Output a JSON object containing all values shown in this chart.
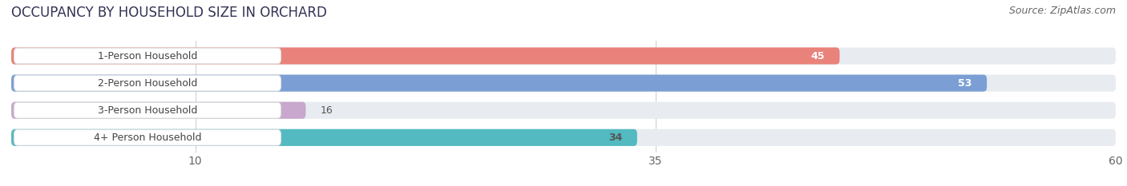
{
  "title": "OCCUPANCY BY HOUSEHOLD SIZE IN ORCHARD",
  "source": "Source: ZipAtlas.com",
  "categories": [
    "1-Person Household",
    "2-Person Household",
    "3-Person Household",
    "4+ Person Household"
  ],
  "values": [
    45,
    53,
    16,
    34
  ],
  "bar_colors": [
    "#E8827A",
    "#7B9FD4",
    "#C8A8CC",
    "#52BAC0"
  ],
  "value_label_colors": [
    "white",
    "white",
    "#555555",
    "#555555"
  ],
  "xlim": [
    0,
    60
  ],
  "xticks": [
    10,
    35,
    60
  ],
  "background_color": "#ffffff",
  "bar_bg_color": "#e8ecf0",
  "label_bg_color": "#ffffff",
  "title_fontsize": 12,
  "source_fontsize": 9,
  "tick_fontsize": 10,
  "bar_label_fontsize": 9,
  "category_fontsize": 9
}
